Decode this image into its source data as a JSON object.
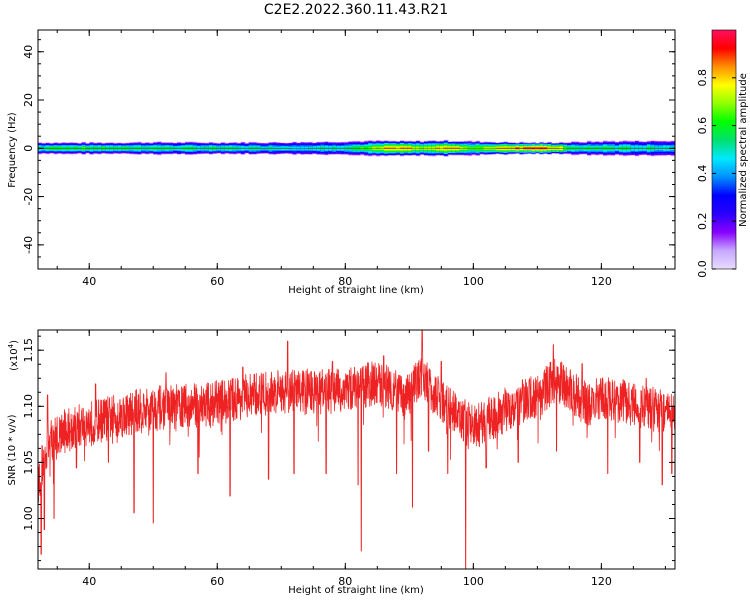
{
  "title": "C2E2.2022.360.11.43.R21",
  "chart_data": [
    {
      "type": "heatmap",
      "xlabel": "Height of straight line (km)",
      "ylabel": "Frequency (Hz)",
      "xlim": [
        32,
        131.5
      ],
      "ylim": [
        -50,
        49
      ],
      "xticks": [
        {
          "value": 40,
          "label": "40"
        },
        {
          "value": 60,
          "label": "60"
        },
        {
          "value": 80,
          "label": "80"
        },
        {
          "value": 100,
          "label": "100"
        },
        {
          "value": 120,
          "label": "120"
        }
      ],
      "yticks": [
        {
          "value": 40,
          "label": "40"
        },
        {
          "value": 20,
          "label": "20"
        },
        {
          "value": 0,
          "label": "0"
        },
        {
          "value": -20,
          "label": "-20"
        },
        {
          "value": -40,
          "label": "-40"
        }
      ],
      "colorbar": {
        "label": "Normalized spectral amplitude",
        "range": [
          0,
          1
        ],
        "ticks": [
          {
            "value": 0.0,
            "label": "0.0"
          },
          {
            "value": 0.2,
            "label": "0.2"
          },
          {
            "value": 0.4,
            "label": "0.4"
          },
          {
            "value": 0.6,
            "label": "0.6"
          },
          {
            "value": 0.8,
            "label": "0.8"
          }
        ],
        "colors": [
          "#e8dcff",
          "#c8a8ff",
          "#8800ff",
          "#2a00ff",
          "#0000ff",
          "#0090ff",
          "#00e8ff",
          "#00e070",
          "#00ff00",
          "#90ff00",
          "#ffff00",
          "#ff9000",
          "#ff0000",
          "#ff1060"
        ]
      },
      "center_frequency": 0,
      "band_halfwidth_hz": [
        [
          32,
          2.5
        ],
        [
          40,
          2.4
        ],
        [
          50,
          2.6
        ],
        [
          60,
          2.5
        ],
        [
          70,
          2.6
        ],
        [
          80,
          3.0
        ],
        [
          85,
          3.2
        ],
        [
          90,
          3.0
        ],
        [
          95,
          3.3
        ],
        [
          100,
          3.0
        ],
        [
          105,
          2.6
        ],
        [
          110,
          2.4
        ],
        [
          115,
          2.6
        ],
        [
          120,
          3.0
        ],
        [
          125,
          3.2
        ],
        [
          131.5,
          3.3
        ]
      ],
      "peak_amplitude": [
        [
          32,
          0.62
        ],
        [
          36,
          0.68
        ],
        [
          40,
          0.66
        ],
        [
          45,
          0.64
        ],
        [
          50,
          0.63
        ],
        [
          55,
          0.6
        ],
        [
          60,
          0.62
        ],
        [
          65,
          0.58
        ],
        [
          70,
          0.57
        ],
        [
          75,
          0.55
        ],
        [
          80,
          0.6
        ],
        [
          84,
          0.72
        ],
        [
          87,
          0.88
        ],
        [
          89,
          0.9
        ],
        [
          92,
          0.78
        ],
        [
          95,
          0.9
        ],
        [
          97,
          0.88
        ],
        [
          100,
          0.72
        ],
        [
          103,
          0.86
        ],
        [
          106,
          0.96
        ],
        [
          110,
          0.98
        ],
        [
          113,
          0.9
        ],
        [
          116,
          0.6
        ],
        [
          120,
          0.62
        ],
        [
          125,
          0.6
        ],
        [
          131.5,
          0.56
        ]
      ]
    },
    {
      "type": "line",
      "xlabel": "Height of straight line (km)",
      "ylabel": "SNR (10 * v/v)",
      "y_multiplier": "(x10",
      "y_multiplier_exp": "4",
      "y_multiplier_close": ")",
      "xlim": [
        32,
        131.5
      ],
      "ylim": [
        0.955,
        1.168
      ],
      "xticks": [
        {
          "value": 40,
          "label": "40"
        },
        {
          "value": 60,
          "label": "60"
        },
        {
          "value": 80,
          "label": "80"
        },
        {
          "value": 100,
          "label": "100"
        },
        {
          "value": 120,
          "label": "120"
        }
      ],
      "yticks": [
        {
          "value": 1.0,
          "label": "1.00"
        },
        {
          "value": 1.05,
          "label": "1.05"
        },
        {
          "value": 1.1,
          "label": "1.10"
        },
        {
          "value": 1.15,
          "label": "1.15"
        }
      ],
      "color": "#ee2222",
      "series": [
        {
          "x": [
            32,
            32.5,
            33,
            33.5,
            34,
            34.5,
            35,
            36,
            38,
            40,
            42,
            45,
            48,
            50,
            55,
            60,
            63,
            66,
            70,
            73,
            76,
            80,
            84,
            87,
            89,
            90,
            91,
            92,
            93,
            94,
            96,
            98,
            100,
            103,
            106,
            108,
            110,
            112,
            113,
            115,
            118,
            120,
            123,
            126,
            128,
            130,
            131.5
          ],
          "mean": [
            1.03,
            1.045,
            1.055,
            1.065,
            1.07,
            1.072,
            1.073,
            1.078,
            1.082,
            1.085,
            1.088,
            1.092,
            1.096,
            1.098,
            1.1,
            1.103,
            1.107,
            1.11,
            1.113,
            1.114,
            1.113,
            1.114,
            1.12,
            1.118,
            1.106,
            1.11,
            1.12,
            1.13,
            1.12,
            1.11,
            1.1,
            1.09,
            1.08,
            1.09,
            1.1,
            1.105,
            1.108,
            1.12,
            1.125,
            1.115,
            1.1,
            1.108,
            1.105,
            1.1,
            1.098,
            1.095,
            1.09
          ],
          "spread": 0.02,
          "dips": [
            [
              32.5,
              0.968
            ],
            [
              33,
              0.99
            ],
            [
              34.5,
              1.0
            ],
            [
              38,
              1.045
            ],
            [
              43,
              1.05
            ],
            [
              47,
              1.005
            ],
            [
              50,
              0.996
            ],
            [
              57,
              1.04
            ],
            [
              62,
              1.02
            ],
            [
              68,
              1.035
            ],
            [
              72,
              1.04
            ],
            [
              77,
              1.04
            ],
            [
              82,
              1.03
            ],
            [
              82.5,
              0.971
            ],
            [
              88,
              1.04
            ],
            [
              90.5,
              1.01
            ],
            [
              93,
              1.06
            ],
            [
              96,
              1.04
            ],
            [
              98.8,
              0.955
            ],
            [
              102,
              1.045
            ],
            [
              107,
              1.05
            ],
            [
              113,
              1.06
            ],
            [
              121,
              1.04
            ],
            [
              126,
              1.05
            ],
            [
              129.5,
              1.03
            ],
            [
              131,
              1.04
            ]
          ],
          "spikes": [
            [
              33.5,
              1.11
            ],
            [
              41,
              1.12
            ],
            [
              52,
              1.13
            ],
            [
              64,
              1.135
            ],
            [
              71,
              1.158
            ],
            [
              78,
              1.14
            ],
            [
              86,
              1.145
            ],
            [
              92,
              1.168
            ],
            [
              95,
              1.14
            ],
            [
              112.5,
              1.155
            ],
            [
              117,
              1.138
            ],
            [
              127,
              1.125
            ]
          ]
        }
      ]
    }
  ]
}
